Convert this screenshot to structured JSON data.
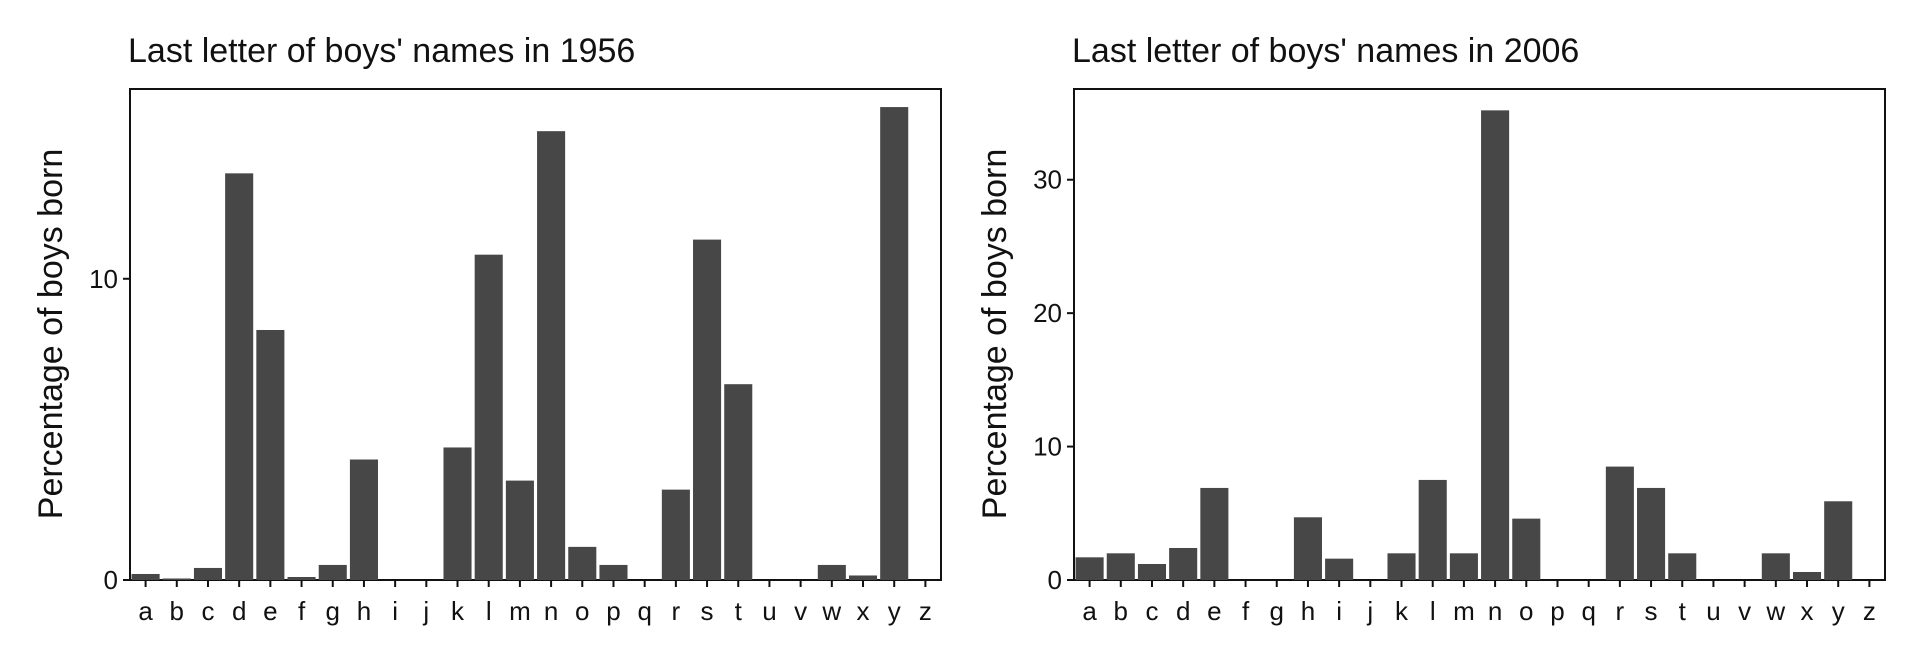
{
  "chart_data": [
    {
      "type": "bar",
      "title": "Last letter of boys' names in 1956",
      "xlabel": "",
      "ylabel": "Percentage of boys born",
      "ylim": [
        0,
        16.3
      ],
      "yticks": [
        0,
        10
      ],
      "bar_color": "#474747",
      "grid": false,
      "categories": [
        "a",
        "b",
        "c",
        "d",
        "e",
        "f",
        "g",
        "h",
        "i",
        "j",
        "k",
        "l",
        "m",
        "n",
        "o",
        "p",
        "q",
        "r",
        "s",
        "t",
        "u",
        "v",
        "w",
        "x",
        "y",
        "z"
      ],
      "values": [
        0.2,
        0.05,
        0.4,
        13.5,
        8.3,
        0.1,
        0.5,
        4.0,
        0,
        0,
        4.4,
        10.8,
        3.3,
        14.9,
        1.1,
        0.5,
        0,
        3.0,
        11.3,
        6.5,
        0,
        0,
        0.5,
        0.15,
        15.7,
        0
      ]
    },
    {
      "type": "bar",
      "title": "Last letter of boys' names in 2006",
      "xlabel": "",
      "ylabel": "Percentage of boys born",
      "ylim": [
        0,
        36.8
      ],
      "yticks": [
        0,
        10,
        20,
        30
      ],
      "bar_color": "#474747",
      "grid": false,
      "categories": [
        "a",
        "b",
        "c",
        "d",
        "e",
        "f",
        "g",
        "h",
        "i",
        "j",
        "k",
        "l",
        "m",
        "n",
        "o",
        "p",
        "q",
        "r",
        "s",
        "t",
        "u",
        "v",
        "w",
        "x",
        "y",
        "z"
      ],
      "values": [
        1.7,
        2.0,
        1.2,
        2.4,
        6.9,
        0,
        0,
        4.7,
        1.6,
        0,
        2.0,
        7.5,
        2.0,
        35.2,
        4.6,
        0,
        0,
        8.5,
        6.9,
        2.0,
        0,
        0,
        2.0,
        0.6,
        5.9,
        0
      ]
    }
  ]
}
